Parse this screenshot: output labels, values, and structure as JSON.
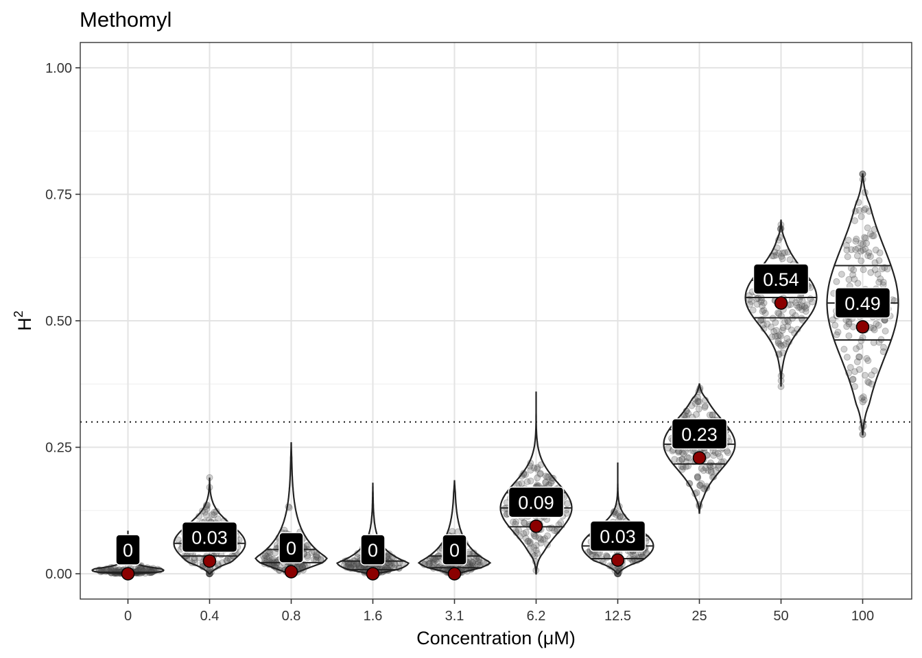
{
  "chart_data": {
    "type": "violin",
    "title": "Methomyl",
    "xlabel": "Concentration (μM)",
    "ylabel_base": "H",
    "ylabel_superscript": "2",
    "ylim": [
      -0.05,
      1.05
    ],
    "yticks": [
      "0.00",
      "0.25",
      "0.50",
      "0.75",
      "1.00"
    ],
    "reference_line": {
      "y": 0.3,
      "style": "dotted"
    },
    "grid": true,
    "point_color": "#8b0000",
    "label_bg": "#000000",
    "categories": [
      "0",
      "0.4",
      "0.8",
      "1.6",
      "3.1",
      "6.2",
      "12.5",
      "25",
      "50",
      "100"
    ],
    "groups": [
      {
        "category": "0",
        "point": 0.0,
        "label": "0",
        "min": 0.0,
        "max": 0.085,
        "q1": 0.0,
        "median": 0.0,
        "q3": 0.003
      },
      {
        "category": "0.4",
        "point": 0.025,
        "label": "0.03",
        "min": 0.0,
        "max": 0.19,
        "q1": 0.035,
        "median": 0.06,
        "q3": 0.085
      },
      {
        "category": "0.8",
        "point": 0.004,
        "label": "0",
        "min": 0.0,
        "max": 0.26,
        "q1": 0.004,
        "median": 0.022,
        "q3": 0.048
      },
      {
        "category": "1.6",
        "point": 0.0,
        "label": "0",
        "min": 0.0,
        "max": 0.18,
        "q1": 0.0,
        "median": 0.008,
        "q3": 0.025
      },
      {
        "category": "3.1",
        "point": 0.0,
        "label": "0",
        "min": 0.0,
        "max": 0.185,
        "q1": 0.0,
        "median": 0.012,
        "q3": 0.035
      },
      {
        "category": "6.2",
        "point": 0.094,
        "label": "0.09",
        "min": 0.0,
        "max": 0.36,
        "q1": 0.093,
        "median": 0.13,
        "q3": 0.16
      },
      {
        "category": "12.5",
        "point": 0.027,
        "label": "0.03",
        "min": 0.0,
        "max": 0.22,
        "q1": 0.03,
        "median": 0.055,
        "q3": 0.075
      },
      {
        "category": "25",
        "point": 0.229,
        "label": "0.23",
        "min": 0.12,
        "max": 0.375,
        "q1": 0.217,
        "median": 0.256,
        "q3": 0.285
      },
      {
        "category": "50",
        "point": 0.535,
        "label": "0.54",
        "min": 0.37,
        "max": 0.7,
        "q1": 0.506,
        "median": 0.546,
        "q3": 0.58
      },
      {
        "category": "100",
        "point": 0.488,
        "label": "0.49",
        "min": 0.275,
        "max": 0.79,
        "q1": 0.462,
        "median": 0.535,
        "q3": 0.609
      }
    ]
  }
}
